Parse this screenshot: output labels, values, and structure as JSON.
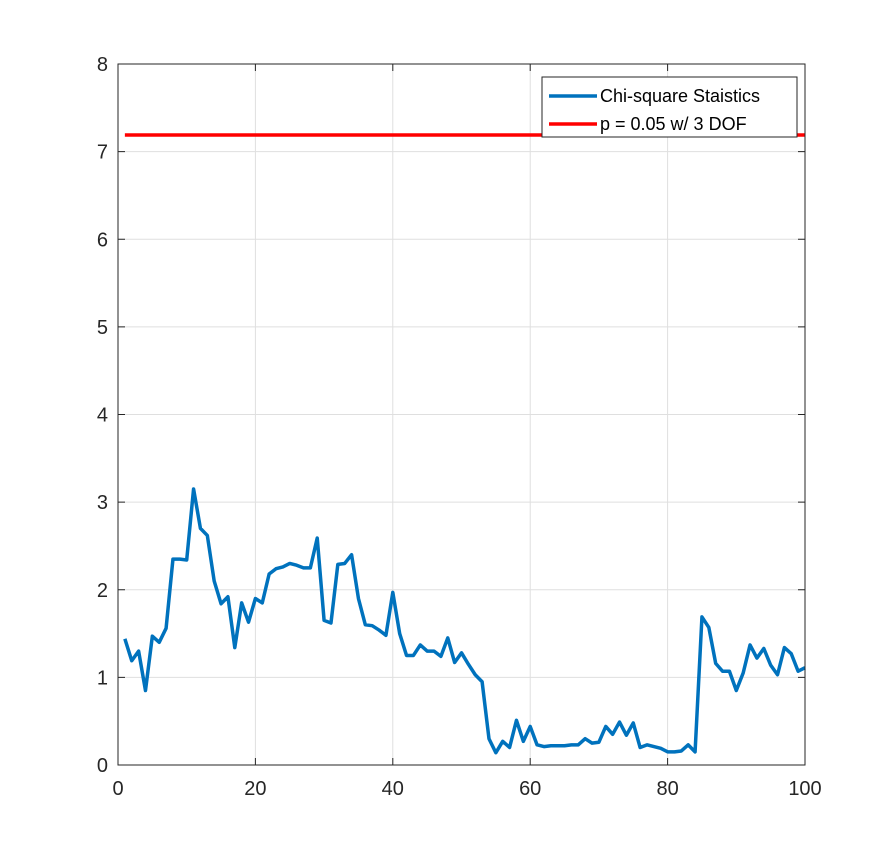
{
  "chart_data": {
    "type": "line",
    "title": "",
    "xlabel": "",
    "ylabel": "",
    "xlim": [
      0,
      100
    ],
    "ylim": [
      0,
      8
    ],
    "xticks": [
      0,
      20,
      40,
      60,
      80,
      100
    ],
    "yticks": [
      0,
      1,
      2,
      3,
      4,
      5,
      6,
      7,
      8
    ],
    "grid": true,
    "legend_position": "top-right",
    "series": [
      {
        "name": "Chi-square Staistics",
        "color": "#0072BD",
        "x": [
          1,
          2,
          3,
          4,
          5,
          6,
          7,
          8,
          9,
          10,
          11,
          12,
          13,
          14,
          15,
          16,
          17,
          18,
          19,
          20,
          21,
          22,
          23,
          24,
          25,
          26,
          27,
          28,
          29,
          30,
          31,
          32,
          33,
          34,
          35,
          36,
          37,
          38,
          39,
          40,
          41,
          42,
          43,
          44,
          45,
          46,
          47,
          48,
          49,
          50,
          51,
          52,
          53,
          54,
          55,
          56,
          57,
          58,
          59,
          60,
          61,
          62,
          63,
          64,
          65,
          66,
          67,
          68,
          69,
          70,
          71,
          72,
          73,
          74,
          75,
          76,
          77,
          78,
          79,
          80,
          81,
          82,
          83,
          84,
          85,
          86,
          87,
          88,
          89,
          90,
          91,
          92,
          93,
          94,
          95,
          96,
          97,
          98,
          99,
          100
        ],
        "y": [
          1.44,
          1.19,
          1.3,
          0.85,
          1.47,
          1.4,
          1.56,
          2.35,
          2.35,
          2.34,
          3.15,
          2.7,
          2.62,
          2.1,
          1.84,
          1.92,
          1.34,
          1.85,
          1.63,
          1.9,
          1.85,
          2.18,
          2.24,
          2.26,
          2.3,
          2.28,
          2.25,
          2.25,
          2.59,
          1.65,
          1.62,
          2.29,
          2.3,
          2.4,
          1.9,
          1.6,
          1.59,
          1.54,
          1.48,
          1.97,
          1.5,
          1.25,
          1.25,
          1.37,
          1.3,
          1.3,
          1.24,
          1.45,
          1.17,
          1.28,
          1.15,
          1.03,
          0.95,
          0.3,
          0.14,
          0.27,
          0.2,
          0.51,
          0.27,
          0.44,
          0.23,
          0.21,
          0.22,
          0.22,
          0.22,
          0.23,
          0.23,
          0.3,
          0.25,
          0.26,
          0.44,
          0.35,
          0.49,
          0.34,
          0.48,
          0.2,
          0.23,
          0.21,
          0.19,
          0.15,
          0.15,
          0.16,
          0.23,
          0.15,
          1.69,
          1.57,
          1.16,
          1.07,
          1.07,
          0.85,
          1.05,
          1.37,
          1.22,
          1.33,
          1.14,
          1.03,
          1.34,
          1.27,
          1.07,
          1.11
        ]
      },
      {
        "name": "p = 0.05 w/ 3 DOF",
        "color": "#FF0000",
        "x": [
          1,
          100
        ],
        "y": [
          7.19,
          7.19
        ]
      }
    ]
  }
}
